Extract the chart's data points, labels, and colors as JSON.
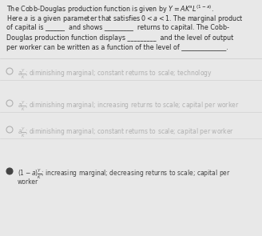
{
  "bg_color": "#e8e8e8",
  "text_color": "#2a2a2a",
  "light_text": "#999999",
  "para_fontsize": 5.8,
  "option_fontsize": 5.5,
  "selected_color": "#444444",
  "unselected_color": "#b0b0b0",
  "paragraph_lines": [
    "The Cobb-Douglas production function is given by $Y = AK^a L^{(1-a)}$.",
    "Here $a$ is a given parameter that satisfies $0 < a < 1$. The marginal product",
    "of capital is ______  and shows _________  returns to capital. The Cobb-",
    "Douglas production function displays _________  and the level of output",
    "per worker can be written as a function of the level of ______________."
  ],
  "options": [
    {
      "math": "$a\\frac{Y}{K}$",
      "rest": "; diminishing marginal; constant returns to scale; technology",
      "selected": false,
      "second_line": null
    },
    {
      "math": "$a\\frac{Y}{K}$",
      "rest": "; diminishing marginal; increasing returns to scale; capital per worker",
      "selected": false,
      "second_line": null
    },
    {
      "math": "$a\\frac{Y}{K}$",
      "rest": "; diminishing marginal; constant returns to scale; capital per worker",
      "selected": false,
      "second_line": null
    },
    {
      "math": "$(1 - a)\\frac{Y}{K}$",
      "rest": "; increasing marginal; decreasing returns to scale; capital per",
      "selected": true,
      "second_line": "worker"
    }
  ]
}
